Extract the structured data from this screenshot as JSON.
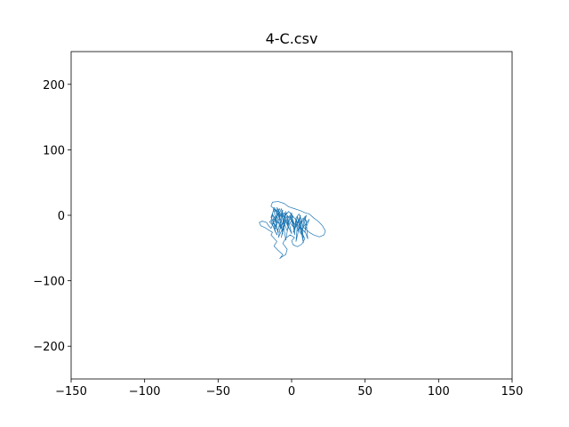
{
  "chart_data": {
    "type": "line",
    "title": "4-C.csv",
    "xlabel": "",
    "ylabel": "",
    "xlim": [
      -150,
      150
    ],
    "ylim": [
      -250,
      250
    ],
    "xticks": [
      -150,
      -100,
      -50,
      0,
      50,
      100,
      150
    ],
    "yticks": [
      -200,
      -100,
      0,
      100,
      200
    ],
    "xtick_labels": [
      "−150",
      "−100",
      "−50",
      "0",
      "50",
      "100",
      "150"
    ],
    "ytick_labels": [
      "−200",
      "−100",
      "0",
      "100",
      "200"
    ],
    "grid": false,
    "legend": "none",
    "series": [
      {
        "color": "#1f77b4",
        "x": [
          -6,
          -10,
          -14,
          -13,
          -9,
          -5,
          -2,
          2,
          6,
          9,
          12,
          15,
          18,
          21,
          23,
          22,
          19,
          15,
          12,
          10,
          8,
          7,
          9,
          7,
          4,
          1,
          0,
          2,
          -1,
          -4,
          -6,
          -3,
          -4,
          -7,
          -8,
          -6,
          -9,
          -12,
          -10,
          -14,
          -13,
          -16,
          -18,
          -21,
          -22,
          -20,
          -17,
          -16,
          -14,
          -13,
          -15,
          -12,
          -10,
          -11,
          -9,
          -8,
          -8,
          -7,
          -5,
          -4,
          -5,
          -7,
          -8,
          -10,
          -12,
          -14,
          -11,
          -13,
          -9,
          -12,
          -7,
          -9,
          -6,
          -10,
          -5,
          -8,
          -4,
          -7,
          -3,
          -2,
          -4,
          -6,
          -3,
          -1,
          1,
          0,
          2,
          3,
          5,
          3,
          4,
          6,
          5,
          7,
          8,
          6,
          9,
          10,
          8,
          6,
          7,
          5,
          4,
          2,
          1,
          -1,
          -3,
          -2,
          -5,
          -7,
          -6,
          -9,
          -11,
          -10,
          -8,
          -12,
          -10,
          -13,
          -11,
          -14,
          -12,
          -9,
          -13,
          -10,
          -7,
          -11,
          -8,
          -6,
          -9,
          -4,
          -7,
          -2,
          -5,
          0,
          -3,
          2,
          -1,
          4,
          1,
          6,
          3,
          8,
          5,
          7,
          9,
          10,
          11,
          9,
          12,
          8,
          10,
          6,
          4,
          7,
          5,
          3,
          2,
          -1,
          1,
          -2,
          -4,
          -3,
          -6
        ],
        "y": [
          0,
          6,
          14,
          20,
          21,
          18,
          13,
          10,
          7,
          4,
          2,
          -4,
          -9,
          -16,
          -24,
          -30,
          -33,
          -30,
          -26,
          -22,
          -18,
          -26,
          -36,
          -44,
          -48,
          -45,
          -39,
          -34,
          -30,
          -35,
          -43,
          -52,
          -60,
          -64,
          -66,
          -60,
          -54,
          -47,
          -40,
          -30,
          -26,
          -22,
          -19,
          -16,
          -11,
          -9,
          -11,
          -15,
          -20,
          -15,
          -10,
          -6,
          -12,
          -2,
          2,
          -8,
          4,
          10,
          -4,
          6,
          -14,
          -20,
          -6,
          3,
          9,
          -3,
          -16,
          -10,
          -26,
          -2,
          -18,
          6,
          -28,
          12,
          -8,
          -22,
          2,
          -34,
          0,
          -12,
          -38,
          -6,
          -24,
          -2,
          -16,
          4,
          -30,
          -6,
          -20,
          -40,
          -12,
          0,
          -22,
          -8,
          -42,
          -18,
          -26,
          -8,
          -4,
          -10,
          -30,
          -14,
          -2,
          -22,
          -10,
          0,
          -6,
          -18,
          4,
          -2,
          8,
          -8,
          -20,
          0,
          10,
          6,
          -12,
          2,
          -26,
          -8,
          12,
          4,
          -14,
          -30,
          -2,
          8,
          -18,
          2,
          -34,
          -10,
          6,
          -20,
          -4,
          -28,
          0,
          -14,
          4,
          -10,
          -26,
          -4,
          -16,
          -34,
          -8,
          -22,
          -2,
          -12,
          -36,
          -24,
          -6,
          -18,
          0,
          -14,
          -24,
          -8,
          2,
          -4,
          -20,
          -12,
          -2,
          6,
          0,
          4,
          -2
        ]
      }
    ]
  }
}
